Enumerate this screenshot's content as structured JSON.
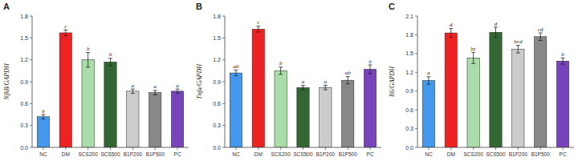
{
  "chart_data": [
    {
      "type": "bar",
      "title": "A",
      "ylabel": "NfkB/GAPDH",
      "categories": [
        "NC",
        "DM",
        "SCS200",
        "SCS500",
        "B1P200",
        "B1P500",
        "PC"
      ],
      "values": [
        0.42,
        1.57,
        1.2,
        1.17,
        0.77,
        0.75,
        0.77
      ],
      "errors": [
        0.03,
        0.04,
        0.1,
        0.05,
        0.03,
        0.03,
        0.03
      ],
      "annotations": [
        "b",
        "c",
        "b",
        "b",
        "a",
        "a",
        "a"
      ],
      "colors": [
        "#4499ee",
        "#ee2222",
        "#aaddaa",
        "#336633",
        "#cccccc",
        "#888888",
        "#7744bb"
      ],
      "ylim": [
        0,
        1.8
      ],
      "yticks": [
        {
          "value": 0,
          "label": "0.0"
        },
        0.3,
        0.6,
        0.9,
        1.2,
        1.5,
        1.8
      ],
      "grid": false
    },
    {
      "type": "bar",
      "title": "B",
      "ylabel": "Tnfa/GAPDH",
      "categories": [
        "NC",
        "DM",
        "SCS200",
        "SCS500",
        "B1P200",
        "B1P500",
        "PC"
      ],
      "values": [
        1.02,
        1.62,
        1.05,
        0.82,
        0.82,
        0.92,
        1.07
      ],
      "errors": [
        0.04,
        0.04,
        0.05,
        0.03,
        0.03,
        0.05,
        0.06
      ],
      "annotations": [
        "ab",
        "c",
        "b",
        "a",
        "a",
        "ab",
        "b"
      ],
      "colors": [
        "#4499ee",
        "#ee2222",
        "#aaddaa",
        "#336633",
        "#cccccc",
        "#888888",
        "#7744bb"
      ],
      "ylim": [
        0,
        1.8
      ],
      "yticks": [
        {
          "value": 0,
          "label": "0.0"
        },
        0.3,
        0.6,
        0.9,
        1.2,
        1.5,
        1.8
      ],
      "grid": false
    },
    {
      "type": "bar",
      "title": "C",
      "ylabel": "Il6/GAPDH",
      "categories": [
        "NC",
        "DM",
        "SCS200",
        "SCS500",
        "B1P200",
        "B1P500",
        "PC"
      ],
      "values": [
        1.07,
        1.83,
        1.43,
        1.84,
        1.57,
        1.77,
        1.38
      ],
      "errors": [
        0.06,
        0.07,
        0.09,
        0.08,
        0.06,
        0.06,
        0.05
      ],
      "annotations": [
        "a",
        "d",
        "bc",
        "d",
        "bcd",
        "cd",
        "b"
      ],
      "colors": [
        "#4499ee",
        "#ee2222",
        "#aaddaa",
        "#336633",
        "#cccccc",
        "#888888",
        "#7744bb"
      ],
      "ylim": [
        0,
        2.1
      ],
      "yticks": [
        {
          "value": 0,
          "label": "0.0"
        },
        0.3,
        0.6,
        0.9,
        1.2,
        1.5,
        1.8,
        2.1
      ],
      "grid": false
    }
  ]
}
